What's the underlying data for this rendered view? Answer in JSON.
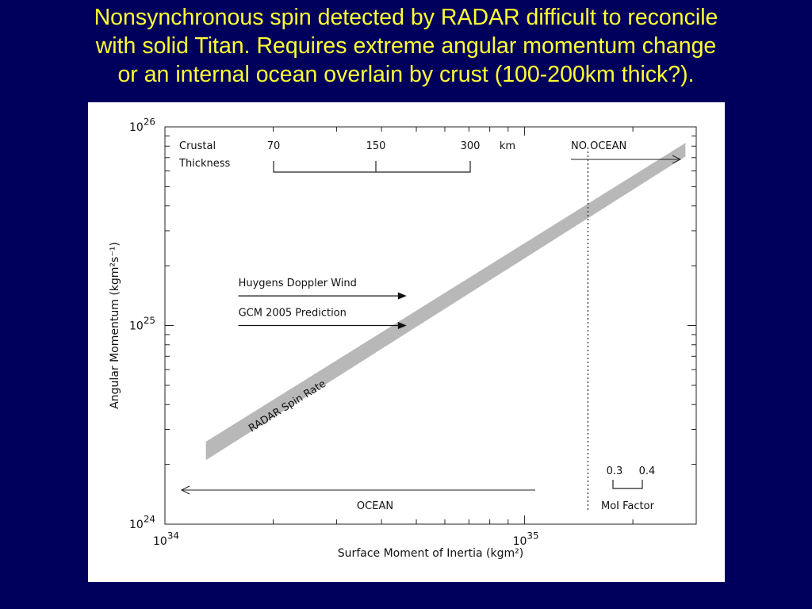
{
  "slide": {
    "title_lines": [
      "Nonsynchronous spin detected by RADAR difficult to reconcile",
      "with solid Titan. Requires extreme angular momentum change",
      "or an internal ocean overlain by crust (100-200km thick?)."
    ]
  },
  "chart_data": {
    "type": "line",
    "x_scale": "log",
    "y_scale": "log",
    "xlabel": "Surface Moment of Inertia (kgm²)",
    "ylabel": "Angular Momentum (kgm²s⁻¹)",
    "xlim": [
      1e+34,
      3e+35
    ],
    "ylim": [
      1e+24,
      1e+26
    ],
    "x_tick_labels": [
      {
        "base": "10",
        "exp": "34",
        "value": 1e+34
      },
      {
        "base": "10",
        "exp": "35",
        "value": 1e+35
      }
    ],
    "y_tick_labels": [
      {
        "base": "10",
        "exp": "24",
        "value": 1e+24
      },
      {
        "base": "10",
        "exp": "25",
        "value": 1e+25
      },
      {
        "base": "10",
        "exp": "26",
        "value": 1e+26
      }
    ],
    "series": [
      {
        "name": "RADAR Spin Rate",
        "style": "band",
        "color": "#b8b8b8",
        "x": [
          1.3e+34,
          2.8e+35
        ],
        "y_low": [
          2.1e+24,
          7.1e+25
        ],
        "y_high": [
          2.6e+24,
          8.3e+25
        ]
      }
    ],
    "reference_lines": [
      {
        "label": "Huygens Doppler Wind",
        "y": 1.41e+25,
        "x_start": 1.6e+34,
        "x_end": 4.7e+34
      },
      {
        "label": "GCM 2005 Prediction",
        "y": 1e+25,
        "x_start": 1.6e+34,
        "x_end": 4.7e+34
      }
    ],
    "ocean_boundary": {
      "x": 1.5e+35,
      "left_label": "OCEAN",
      "right_label": "NO OCEAN"
    },
    "crustal_thickness": {
      "label_line1": "Crustal",
      "label_line2": "Thickness",
      "values": [
        "70",
        "150",
        "300"
      ],
      "unit": "km"
    },
    "moi_factor": {
      "values": [
        "0.3",
        "0.4"
      ],
      "label": "MoI Factor"
    },
    "grid": false
  }
}
